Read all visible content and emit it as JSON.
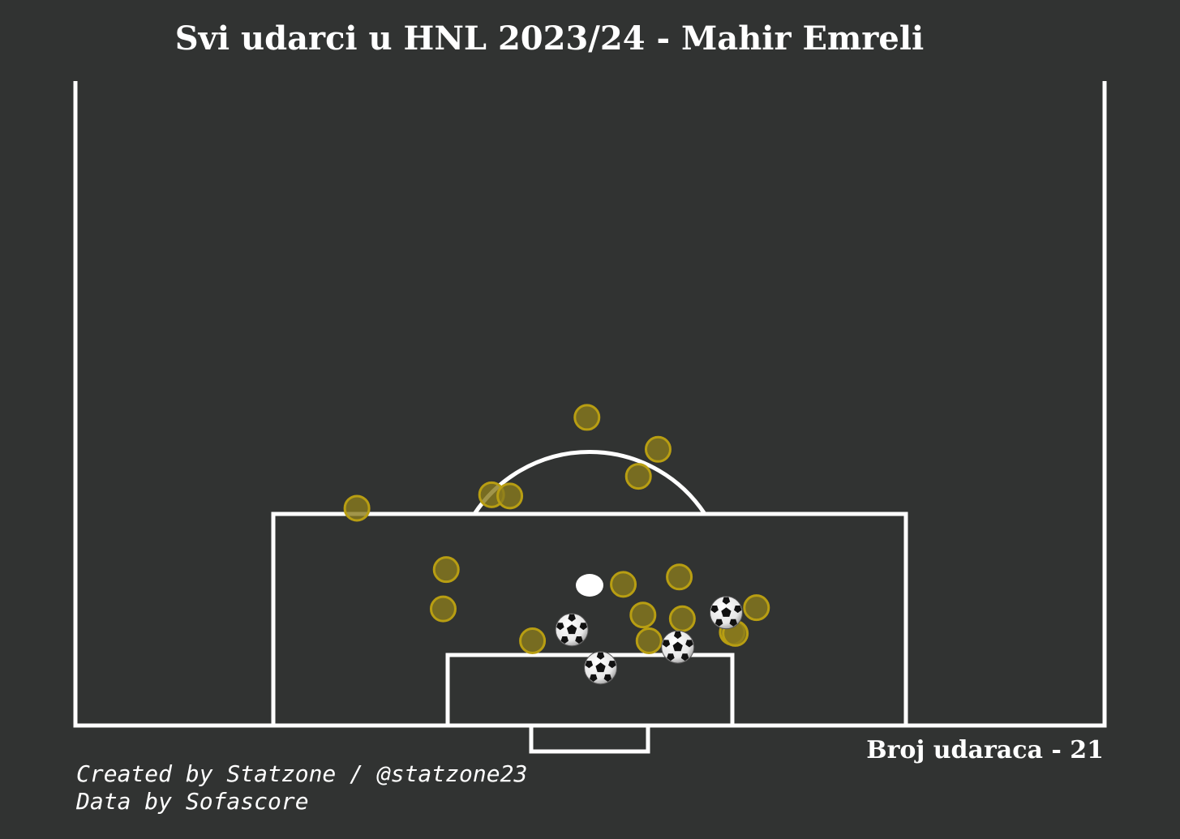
{
  "header": {
    "title": "Svi udarci u HNL 2023/24 - Mahir Emreli"
  },
  "stats": {
    "shot_count_text": "Broj udaraca - 21"
  },
  "footer": {
    "created_by": "Created by Statzone / @statzone23",
    "data_source": "Data by Sofascore"
  },
  "colors": {
    "background": "#313332",
    "lines": "#ffffff",
    "shot_fill": "#8a7a1d",
    "shot_stroke": "#b89e12"
  },
  "chart_data": {
    "type": "scatter",
    "title": "Svi udarci u HNL 2023/24 - Mahir Emreli",
    "xlabel": "",
    "ylabel": "",
    "xlim": [
      0,
      68
    ],
    "ylim": [
      52.5,
      105
    ],
    "grid": false,
    "legend": "none",
    "shots": [
      {
        "x": 33.8,
        "y": 79.9,
        "outcome": "miss"
      },
      {
        "x": 38.5,
        "y": 82.5,
        "outcome": "miss"
      },
      {
        "x": 37.2,
        "y": 84.7,
        "outcome": "miss"
      },
      {
        "x": 27.5,
        "y": 86.2,
        "outcome": "miss"
      },
      {
        "x": 28.7,
        "y": 86.3,
        "outcome": "miss"
      },
      {
        "x": 18.6,
        "y": 87.3,
        "outcome": "miss"
      },
      {
        "x": 24.5,
        "y": 92.3,
        "outcome": "miss"
      },
      {
        "x": 39.9,
        "y": 92.9,
        "outcome": "miss"
      },
      {
        "x": 36.2,
        "y": 93.5,
        "outcome": "miss"
      },
      {
        "x": 24.3,
        "y": 95.5,
        "outcome": "miss"
      },
      {
        "x": 45.0,
        "y": 95.4,
        "outcome": "miss"
      },
      {
        "x": 37.5,
        "y": 96.0,
        "outcome": "miss"
      },
      {
        "x": 40.1,
        "y": 96.3,
        "outcome": "miss"
      },
      {
        "x": 43.4,
        "y": 97.4,
        "outcome": "miss"
      },
      {
        "x": 43.6,
        "y": 97.5,
        "outcome": "miss"
      },
      {
        "x": 30.2,
        "y": 98.1,
        "outcome": "miss"
      },
      {
        "x": 37.9,
        "y": 98.1,
        "outcome": "miss"
      },
      {
        "x": 43.0,
        "y": 95.8,
        "outcome": "goal"
      },
      {
        "x": 32.8,
        "y": 97.2,
        "outcome": "goal"
      },
      {
        "x": 39.8,
        "y": 98.6,
        "outcome": "goal"
      },
      {
        "x": 34.7,
        "y": 100.3,
        "outcome": "goal"
      }
    ]
  }
}
